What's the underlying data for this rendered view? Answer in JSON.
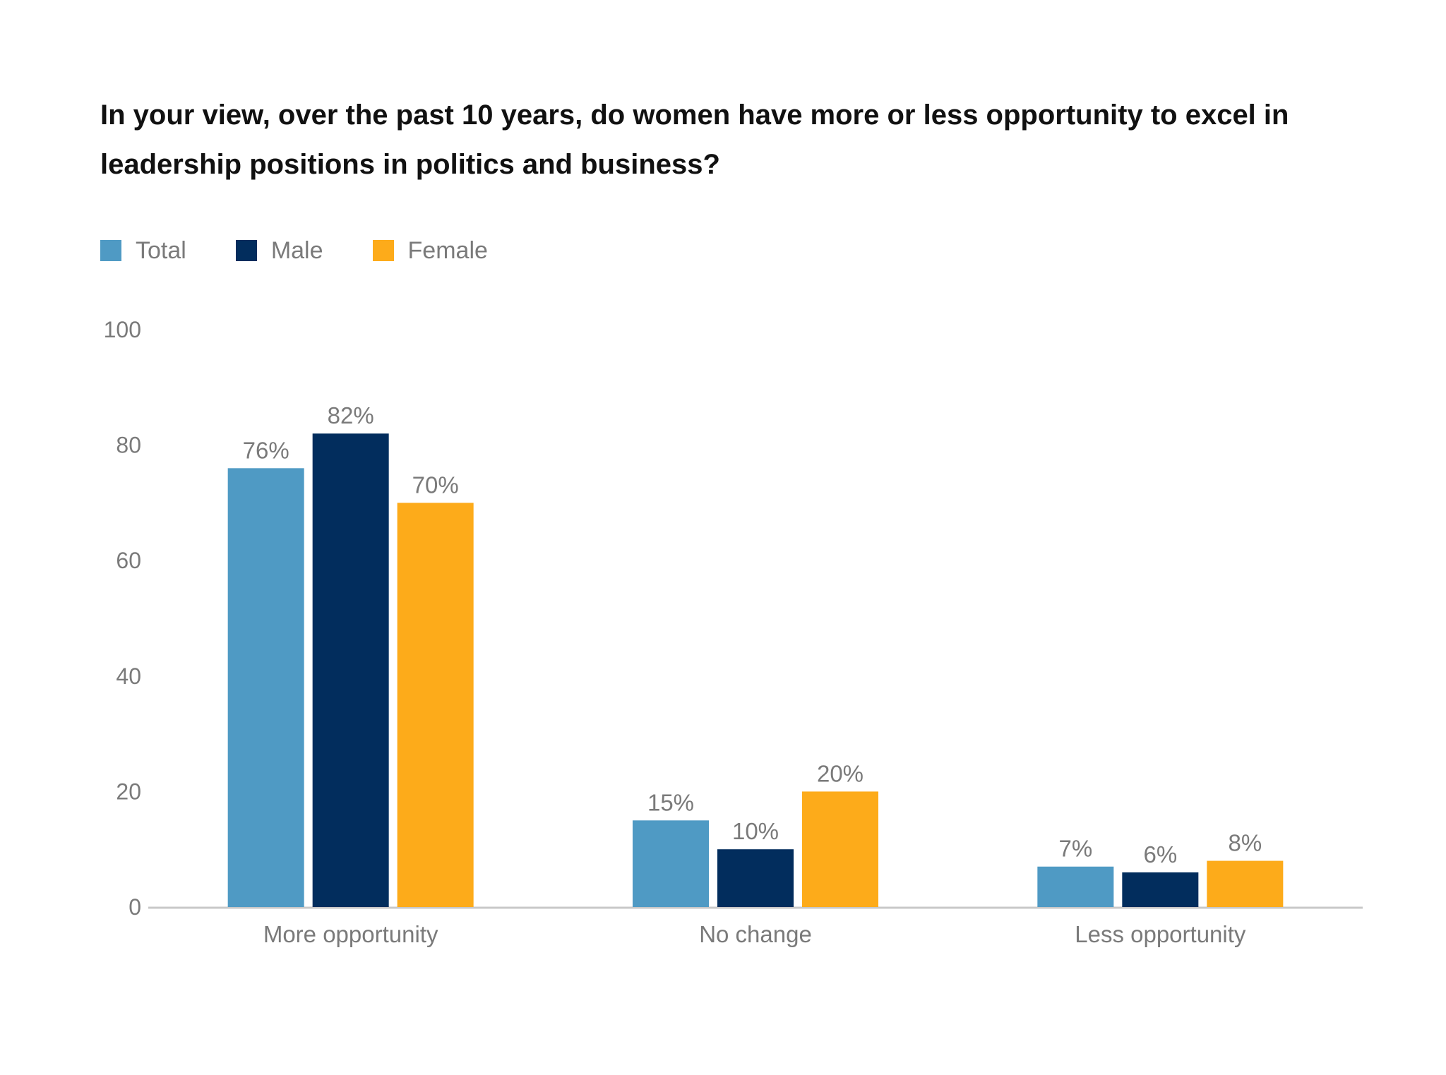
{
  "chart_data": {
    "type": "bar",
    "title": "In your view, over the past 10 years, do women have more or less opportunity to excel in leadership positions in politics and business?",
    "categories": [
      "More opportunity",
      "No change",
      "Less opportunity"
    ],
    "series": [
      {
        "name": "Total",
        "color": "#4f9ac4",
        "values": [
          76,
          15,
          7
        ],
        "labels": [
          "76%",
          "15%",
          "7%"
        ]
      },
      {
        "name": "Male",
        "color": "#022d5d",
        "values": [
          82,
          10,
          6
        ],
        "labels": [
          "82%",
          "10%",
          "6%"
        ]
      },
      {
        "name": "Female",
        "color": "#fdab1a",
        "values": [
          70,
          20,
          8
        ],
        "labels": [
          "70%",
          "20%",
          "8%"
        ]
      }
    ],
    "ylim": [
      0,
      100
    ],
    "yticks": [
      0,
      20,
      40,
      60,
      80,
      100
    ],
    "xlabel": "",
    "ylabel": "",
    "legend": "top-left",
    "grid": false
  }
}
